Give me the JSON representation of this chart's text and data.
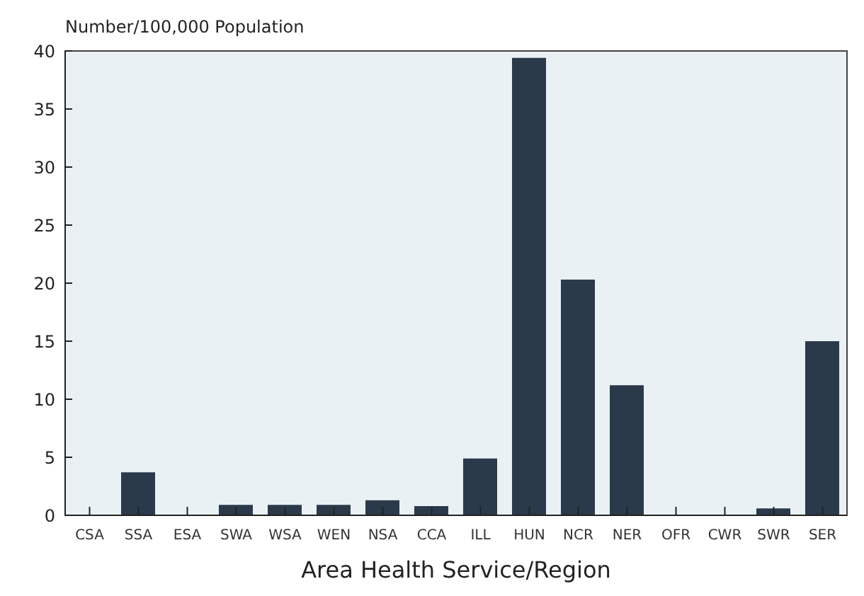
{
  "chart_data": {
    "type": "bar",
    "ylabel": "Number/100,000 Population",
    "xlabel": "Area Health Service/Region",
    "categories": [
      "CSA",
      "SSA",
      "ESA",
      "SWA",
      "WSA",
      "WEN",
      "NSA",
      "CCA",
      "ILL",
      "HUN",
      "NCR",
      "NER",
      "OFR",
      "CWR",
      "SWR",
      "SER"
    ],
    "values": [
      0,
      3.7,
      0,
      0.9,
      0.9,
      0.9,
      1.3,
      0.8,
      4.9,
      39.4,
      20.3,
      11.2,
      0,
      0,
      0.6,
      15.0
    ],
    "color": "#2b3a4a",
    "ylim": [
      0,
      40
    ],
    "yticks": [
      0,
      5,
      10,
      15,
      20,
      25,
      30,
      35,
      40
    ]
  }
}
